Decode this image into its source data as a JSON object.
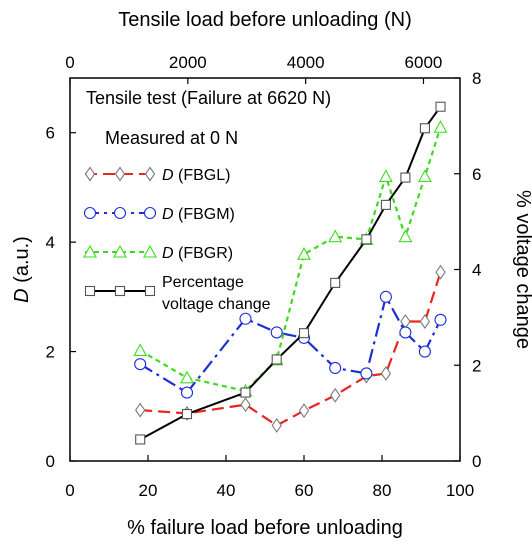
{
  "chart_data": {
    "type": "line",
    "title": "",
    "annotation": "Tensile test (Failure at 6620 N)",
    "xlabel": "% failure load before unloading",
    "x2label": "Tensile load before unloading (N)",
    "ylabel": "D (a.u.)",
    "ylabel_italic": "D",
    "ylabel_rest": " (a.u.)",
    "y2label": "% voltage change",
    "xlim": [
      0,
      100
    ],
    "ylim": [
      0,
      7
    ],
    "x2lim": [
      0,
      6620
    ],
    "y2lim": [
      0,
      8
    ],
    "xticks": [
      "0",
      "20",
      "40",
      "60",
      "80",
      "100"
    ],
    "yticks": [
      "0",
      "2",
      "4",
      "6"
    ],
    "x2ticks": [
      "0",
      "2000",
      "4000",
      "6000"
    ],
    "y2ticks": [
      "0",
      "2",
      "4",
      "6",
      "8"
    ],
    "grid": false,
    "legend_title": "Measured at 0 N",
    "legend_position": "upper-left",
    "series": [
      {
        "name": "(FBGL)",
        "name_italic": "D",
        "axis": "left",
        "color": "#e8251f",
        "dash": "12,6",
        "marker": "diamond",
        "x": [
          18,
          30,
          45,
          53,
          60,
          68,
          76,
          81,
          86,
          91,
          95
        ],
        "y": [
          0.93,
          0.87,
          1.03,
          0.65,
          0.92,
          1.2,
          1.55,
          1.6,
          2.55,
          2.55,
          3.45
        ]
      },
      {
        "name": "(FBGM)",
        "name_italic": "D",
        "axis": "left",
        "color": "#1c2fd6",
        "dash": "14,5,3,5",
        "marker": "circle",
        "x": [
          18,
          30,
          45,
          53,
          60,
          68,
          76,
          81,
          86,
          91,
          95
        ],
        "y": [
          1.77,
          1.25,
          2.6,
          2.35,
          2.25,
          1.7,
          1.6,
          3.0,
          2.35,
          2.0,
          2.58
        ]
      },
      {
        "name": "(FBGR)",
        "name_italic": "D",
        "axis": "left",
        "color": "#3ddb1f",
        "dash": "5,4",
        "marker": "triangle",
        "x": [
          18,
          30,
          45,
          53,
          60,
          68,
          76,
          81,
          86,
          91,
          95
        ],
        "y": [
          2.02,
          1.52,
          1.28,
          1.85,
          3.78,
          4.1,
          4.05,
          5.2,
          4.1,
          5.2,
          6.1
        ]
      },
      {
        "name": "Percentage voltage change",
        "name_lines": [
          "Percentage",
          "voltage change"
        ],
        "axis": "right",
        "color": "#000000",
        "dash": "",
        "marker": "square",
        "x": [
          18,
          30,
          45,
          53,
          60,
          68,
          76,
          81,
          86,
          91,
          95
        ],
        "y": [
          0.45,
          0.98,
          1.43,
          2.12,
          2.67,
          3.72,
          4.63,
          5.35,
          5.92,
          6.95,
          7.4
        ]
      }
    ]
  }
}
